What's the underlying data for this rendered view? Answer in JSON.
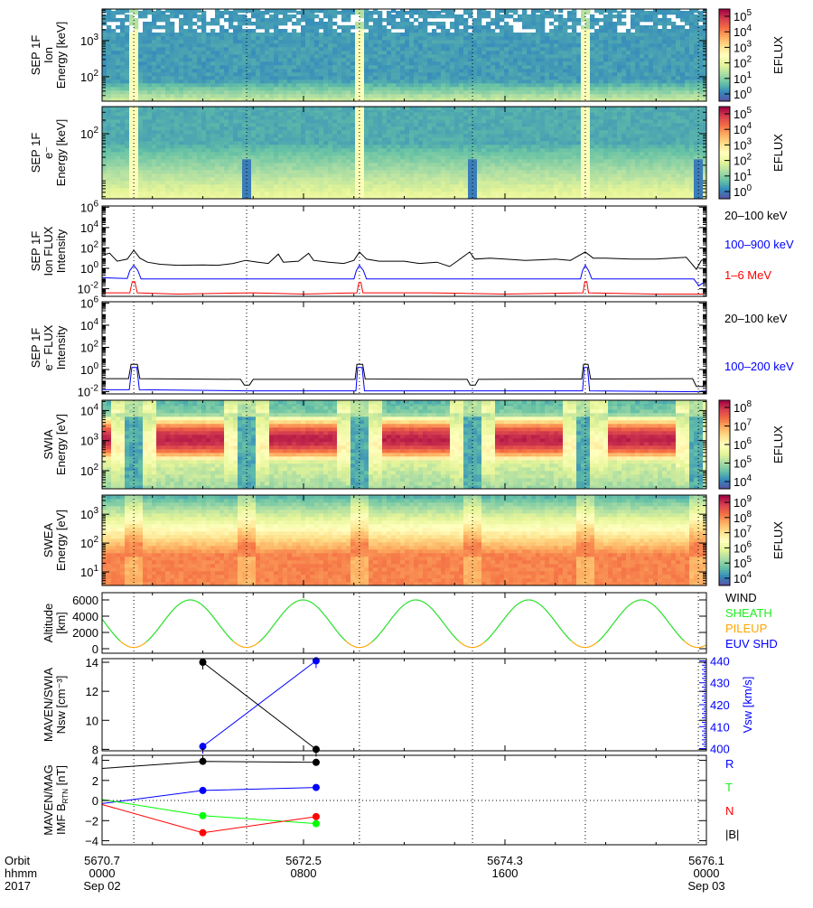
{
  "time_axis": {
    "row_labels": [
      "Orbit",
      "hhmm",
      "2017"
    ],
    "ticks": [
      {
        "hour": 0,
        "orbit": "5670.7",
        "hhmm": "0000",
        "date": "Sep 02"
      },
      {
        "hour": 8,
        "orbit": "5672.5",
        "hhmm": "0800",
        "date": ""
      },
      {
        "hour": 16,
        "orbit": "5674.3",
        "hhmm": "1600",
        "date": ""
      },
      {
        "hour": 24,
        "orbit": "5676.1",
        "hhmm": "0000",
        "date": "Sep 03"
      }
    ],
    "range_hours": [
      0,
      24
    ],
    "periapsis_marker_hours": [
      1.26,
      5.74,
      10.22,
      14.71,
      19.19,
      23.68
    ]
  },
  "colors": {
    "colormap": [
      "#5e4fa2",
      "#3288bd",
      "#66c2a5",
      "#abdda4",
      "#e6f598",
      "#ffffbf",
      "#fee08b",
      "#fdae61",
      "#f46d43",
      "#d53e4f",
      "#9e0142"
    ],
    "black": "#000000",
    "blue": "#0000ff",
    "red": "#ff0000",
    "green": "#00ff00",
    "orange": "#ffa500"
  },
  "chart_data": [
    {
      "id": "sep-ion-spec",
      "type": "heatmap",
      "ylabel": [
        "SEP 1F",
        "Ion",
        "Energy [keV]"
      ],
      "ylog": true,
      "ylim": [
        21,
        7500
      ],
      "yticks": [
        "10^3",
        "10^2"
      ],
      "ytick_values": [
        1000,
        100
      ],
      "zlabel": "EFLUX",
      "zlog": true,
      "zlim": [
        1,
        100000
      ],
      "zticks": [
        "10^5",
        "10^4",
        "10^3",
        "10^2",
        "10^1",
        "10^0"
      ],
      "event_hours": [
        1.26,
        10.22,
        19.19
      ]
    },
    {
      "id": "sep-e-spec",
      "type": "heatmap",
      "ylabel": [
        "SEP 1F",
        "e⁻",
        "Energy [keV]"
      ],
      "ylog": true,
      "ylim": [
        3.6,
        400
      ],
      "yticks": [
        "10^2"
      ],
      "ytick_values": [
        100
      ],
      "zlabel": "EFLUX",
      "zlog": true,
      "zlim": [
        1,
        100000
      ],
      "zticks": [
        "10^5",
        "10^4",
        "10^3",
        "10^2",
        "10^1",
        "10^0"
      ],
      "event_hours": [
        1.26,
        10.22,
        19.19
      ]
    },
    {
      "id": "sep-ion-flux",
      "type": "line",
      "ylabel": [
        "SEP 1F",
        "Ion FLUX",
        "Intensity"
      ],
      "ylog": true,
      "ylim": [
        0.0018,
        1300000
      ],
      "yticks": [
        "10^6",
        "10^4",
        "10^2",
        "10^0",
        "10^-2"
      ],
      "ytick_values": [
        1000000.0,
        10000.0,
        100,
        1,
        0.01
      ],
      "series": [
        {
          "name": "20–100 keV",
          "color": "#000000",
          "points": [
            [
              0,
              20
            ],
            [
              0.3,
              30
            ],
            [
              0.6,
              5
            ],
            [
              1.0,
              8
            ],
            [
              1.26,
              60
            ],
            [
              1.5,
              10
            ],
            [
              1.8,
              4
            ],
            [
              2.3,
              2.5
            ],
            [
              3,
              2
            ],
            [
              4,
              2.2
            ],
            [
              4.6,
              2
            ],
            [
              5.2,
              3
            ],
            [
              5.7,
              6
            ],
            [
              6.2,
              4
            ],
            [
              6.6,
              3
            ],
            [
              7.0,
              25
            ],
            [
              7.2,
              4
            ],
            [
              7.8,
              5
            ],
            [
              8.2,
              30
            ],
            [
              8.4,
              6
            ],
            [
              9,
              4
            ],
            [
              9.6,
              3
            ],
            [
              10.0,
              6
            ],
            [
              10.22,
              40
            ],
            [
              10.5,
              8
            ],
            [
              11,
              5
            ],
            [
              12,
              5
            ],
            [
              12.6,
              3
            ],
            [
              13.3,
              4
            ],
            [
              13.8,
              1.5
            ],
            [
              14.1,
              5
            ],
            [
              14.6,
              40
            ],
            [
              14.8,
              8
            ],
            [
              15.4,
              10
            ],
            [
              16,
              8
            ],
            [
              16.8,
              6
            ],
            [
              17.5,
              7
            ],
            [
              18,
              8
            ],
            [
              18.6,
              6
            ],
            [
              19.19,
              40
            ],
            [
              19.5,
              10
            ],
            [
              20,
              10
            ],
            [
              21,
              8
            ],
            [
              22,
              8
            ],
            [
              22.6,
              10
            ],
            [
              23.2,
              12
            ],
            [
              23.6,
              0.8
            ],
            [
              23.8,
              6
            ],
            [
              24,
              8
            ]
          ]
        },
        {
          "name": "100–900 keV",
          "color": "#0000ff",
          "points": [
            [
              0,
              0.12
            ],
            [
              1.0,
              0.1
            ],
            [
              1.1,
              0.6
            ],
            [
              1.26,
              2
            ],
            [
              1.42,
              0.6
            ],
            [
              1.55,
              0.09
            ],
            [
              5,
              0.09
            ],
            [
              10.0,
              0.09
            ],
            [
              10.1,
              0.6
            ],
            [
              10.22,
              2
            ],
            [
              10.38,
              0.6
            ],
            [
              10.5,
              0.09
            ],
            [
              15,
              0.09
            ],
            [
              19.0,
              0.09
            ],
            [
              19.08,
              0.6
            ],
            [
              19.19,
              2
            ],
            [
              19.32,
              0.6
            ],
            [
              19.45,
              0.09
            ],
            [
              23.5,
              0.09
            ],
            [
              23.7,
              0.02
            ],
            [
              24,
              0.06
            ]
          ]
        },
        {
          "name": "1–6 MeV",
          "color": "#ff0000",
          "points": [
            [
              0,
              0.004
            ],
            [
              1.1,
              0.004
            ],
            [
              1.2,
              0.05
            ],
            [
              1.3,
              0.05
            ],
            [
              1.4,
              0.004
            ],
            [
              3,
              0.003
            ],
            [
              6,
              0.004
            ],
            [
              8,
              0.003
            ],
            [
              10.12,
              0.004
            ],
            [
              10.2,
              0.04
            ],
            [
              10.28,
              0.04
            ],
            [
              10.36,
              0.004
            ],
            [
              13,
              0.004
            ],
            [
              16,
              0.003
            ],
            [
              19.1,
              0.004
            ],
            [
              19.17,
              0.05
            ],
            [
              19.25,
              0.05
            ],
            [
              19.32,
              0.004
            ],
            [
              22,
              0.003
            ],
            [
              24,
              0.003
            ]
          ]
        }
      ]
    },
    {
      "id": "sep-e-flux",
      "type": "line",
      "ylabel": [
        "SEP 1F",
        "e⁻ FLUX",
        "Intensity"
      ],
      "ylog": true,
      "ylim": [
        0.0063,
        1300000
      ],
      "yticks": [
        "10^6",
        "10^4",
        "10^2",
        "10^0",
        "10^-2"
      ],
      "ytick_values": [
        1000000.0,
        10000.0,
        100,
        1,
        0.01
      ],
      "series": [
        {
          "name": "20–100 keV",
          "color": "#000000",
          "points": [
            [
              0,
              0.15
            ],
            [
              1.05,
              0.15
            ],
            [
              1.15,
              3
            ],
            [
              1.4,
              3
            ],
            [
              1.5,
              0.15
            ],
            [
              5.5,
              0.13
            ],
            [
              5.65,
              0.04
            ],
            [
              5.85,
              0.04
            ],
            [
              6,
              0.13
            ],
            [
              10.05,
              0.13
            ],
            [
              10.12,
              3
            ],
            [
              10.35,
              3
            ],
            [
              10.45,
              0.14
            ],
            [
              14.5,
              0.13
            ],
            [
              14.62,
              0.04
            ],
            [
              14.82,
              0.04
            ],
            [
              14.95,
              0.13
            ],
            [
              19.05,
              0.14
            ],
            [
              19.12,
              3
            ],
            [
              19.3,
              3
            ],
            [
              19.4,
              0.14
            ],
            [
              23.45,
              0.15
            ],
            [
              23.6,
              0.03
            ],
            [
              23.85,
              0.03
            ],
            [
              24,
              0.08
            ]
          ]
        },
        {
          "name": "100–200 keV",
          "color": "#0000ff",
          "points": [
            [
              0,
              0.015
            ],
            [
              1.08,
              0.015
            ],
            [
              1.18,
              1.5
            ],
            [
              1.38,
              1.5
            ],
            [
              1.48,
              0.015
            ],
            [
              5.7,
              0.012
            ],
            [
              10.08,
              0.012
            ],
            [
              10.15,
              1.5
            ],
            [
              10.33,
              1.5
            ],
            [
              10.42,
              0.012
            ],
            [
              14.7,
              0.012
            ],
            [
              19.08,
              0.012
            ],
            [
              19.15,
              1.5
            ],
            [
              19.28,
              1.5
            ],
            [
              19.36,
              0.012
            ],
            [
              23.6,
              0.01
            ],
            [
              24,
              0.012
            ]
          ]
        }
      ]
    },
    {
      "id": "swia-spec",
      "type": "heatmap",
      "ylabel": [
        "SWIA",
        "Energy [eV]"
      ],
      "ylog": true,
      "ylim": [
        25,
        22000
      ],
      "yticks": [
        "10^4",
        "10^3",
        "10^2"
      ],
      "ytick_values": [
        10000,
        1000,
        100
      ],
      "zlabel": "EFLUX",
      "zlog": true,
      "zlim": [
        10000,
        100000000
      ],
      "zticks": [
        "10^8",
        "10^7",
        "10^6",
        "10^5",
        "10^4"
      ]
    },
    {
      "id": "swea-spec",
      "type": "heatmap",
      "ylabel": [
        "SWEA",
        "Energy [eV]"
      ],
      "ylog": true,
      "ylim": [
        3.4,
        4600
      ],
      "yticks": [
        "10^3",
        "10^2",
        "10^1"
      ],
      "ytick_values": [
        1000,
        100,
        10
      ],
      "zlabel": "EFLUX",
      "zlog": true,
      "zlim": [
        10000,
        1000000000
      ],
      "zticks": [
        "10^9",
        "10^8",
        "10^7",
        "10^6",
        "10^5",
        "10^4"
      ]
    },
    {
      "id": "altitude",
      "type": "line",
      "ylabel": [
        "Altitude",
        "[km]"
      ],
      "ylim": [
        -555,
        6890
      ],
      "yticks": [
        "6000",
        "4000",
        "2000",
        "0"
      ],
      "ytick_values": [
        6000,
        4000,
        2000,
        0
      ],
      "periapsis_hours": [
        1.26,
        5.74,
        10.22,
        14.71,
        19.19,
        23.68
      ],
      "altitude_range_km": [
        150,
        6000
      ],
      "legend": [
        {
          "label": "WIND",
          "color": "#000000"
        },
        {
          "label": "SHEATH",
          "color": "#00ff00"
        },
        {
          "label": "PILEUP",
          "color": "#ffa500"
        },
        {
          "label": "EUV SHD",
          "color": "#0000ff"
        }
      ]
    },
    {
      "id": "nsw",
      "type": "scatter",
      "ylabel": [
        "MAVEN/SWIA",
        "Nsw [cm⁻³]"
      ],
      "ylim": [
        7.9,
        14.25
      ],
      "yticks": [
        "14",
        "12",
        "10",
        "8"
      ],
      "ytick_values": [
        14,
        12,
        10,
        8
      ],
      "y2label": "Vsw [km/s]",
      "y2lim": [
        399,
        441
      ],
      "y2ticks": [
        "440",
        "430",
        "420",
        "410",
        "400"
      ],
      "y2tick_values": [
        440,
        430,
        420,
        410,
        400
      ],
      "series": [
        {
          "name": "Nsw",
          "color": "#000000",
          "axis": "left",
          "points": [
            [
              4.0,
              14.0
            ],
            [
              8.5,
              8.0
            ]
          ]
        },
        {
          "name": "Vsw",
          "color": "#0000ff",
          "axis": "right",
          "points": [
            [
              4.0,
              401
            ],
            [
              8.5,
              440
            ]
          ]
        }
      ]
    },
    {
      "id": "imf",
      "type": "scatter",
      "ylabel": [
        "MAVEN/MAG",
        "IMF B_RTN [nT]"
      ],
      "ylim": [
        -4.4,
        4.5
      ],
      "yticks": [
        "4",
        "2",
        "0",
        "−2",
        "−4"
      ],
      "ytick_values": [
        4,
        2,
        0,
        -2,
        -4
      ],
      "series": [
        {
          "name": "R",
          "color": "#0000ff",
          "points": [
            [
              0,
              -0.3
            ],
            [
              4.0,
              1.0
            ],
            [
              8.5,
              1.3
            ]
          ]
        },
        {
          "name": "T",
          "color": "#00ff00",
          "points": [
            [
              0,
              0.1
            ],
            [
              4.0,
              -1.5
            ],
            [
              8.5,
              -2.3
            ]
          ]
        },
        {
          "name": "N",
          "color": "#ff0000",
          "points": [
            [
              0,
              -0.4
            ],
            [
              4.0,
              -3.2
            ],
            [
              8.5,
              -1.6
            ]
          ]
        },
        {
          "name": "|B|",
          "color": "#000000",
          "points": [
            [
              0,
              3.2
            ],
            [
              4.0,
              3.9
            ],
            [
              8.5,
              3.8
            ]
          ]
        }
      ]
    }
  ]
}
